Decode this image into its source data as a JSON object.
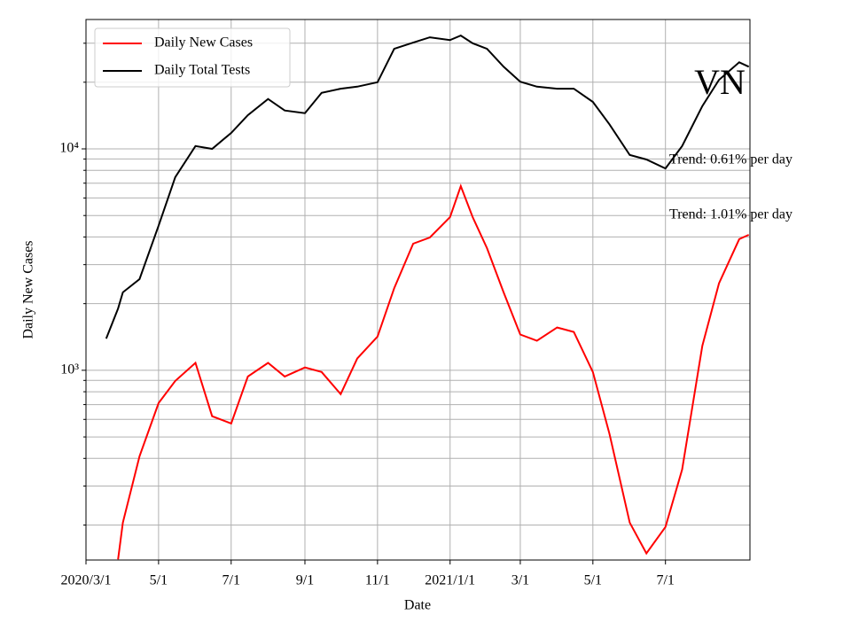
{
  "chart_data": {
    "type": "line",
    "title": "VN",
    "xlabel": "Date",
    "ylabel": "Daily New Cases",
    "annotations": [
      "Trend: 0.61% per day",
      "Trend: 1.01% per day"
    ],
    "x": [
      "2020-03-18",
      "2020-03-28",
      "2020-04-01",
      "2020-04-15",
      "2020-05-01",
      "2020-05-15",
      "2020-06-01",
      "2020-06-15",
      "2020-07-01",
      "2020-07-15",
      "2020-08-01",
      "2020-08-15",
      "2020-09-01",
      "2020-09-15",
      "2020-10-01",
      "2020-10-15",
      "2020-11-01",
      "2020-11-15",
      "2020-12-01",
      "2020-12-15",
      "2021-01-01",
      "2021-01-10",
      "2021-01-20",
      "2021-02-01",
      "2021-02-15",
      "2021-03-01",
      "2021-03-15",
      "2021-04-01",
      "2021-04-15",
      "2021-05-01",
      "2021-05-15",
      "2021-06-01",
      "2021-06-15",
      "2021-07-01",
      "2021-07-15",
      "2021-08-01",
      "2021-08-15",
      "2021-09-01",
      "2021-09-09"
    ],
    "series": [
      {
        "name": "Daily New Cases",
        "color": "#ff0000",
        "values": [
          null,
          140,
          205,
          409,
          711,
          895,
          1080,
          620,
          575,
          937,
          1080,
          937,
          1030,
          982,
          780,
          1130,
          1420,
          2350,
          3730,
          3980,
          4920,
          6790,
          4920,
          3560,
          2250,
          1450,
          1360,
          1560,
          1490,
          982,
          515,
          205,
          149,
          196,
          356,
          1290,
          2470,
          3910,
          4090
        ]
      },
      {
        "name": "Daily Total Tests",
        "color": "#000000",
        "values": [
          1390,
          1900,
          2250,
          2580,
          4500,
          7450,
          10300,
          10000,
          11800,
          14200,
          16800,
          14900,
          14500,
          17900,
          18700,
          19100,
          20000,
          28300,
          30200,
          31900,
          31000,
          32500,
          30000,
          28300,
          23500,
          20100,
          19100,
          18700,
          18700,
          16300,
          12900,
          9380,
          8950,
          8160,
          10300,
          15600,
          20500,
          24600,
          23500
        ]
      }
    ],
    "xlim": [
      "2020-03-01",
      "2021-09-10"
    ],
    "xticks": [
      {
        "value": "2020-03-01",
        "label": "2020/3/1"
      },
      {
        "value": "2020-05-01",
        "label": "5/1"
      },
      {
        "value": "2020-07-01",
        "label": "7/1"
      },
      {
        "value": "2020-09-01",
        "label": "9/1"
      },
      {
        "value": "2020-11-01",
        "label": "11/1"
      },
      {
        "value": "2021-01-01",
        "label": "2021/1/1"
      },
      {
        "value": "2021-03-01",
        "label": "3/1"
      },
      {
        "value": "2021-05-01",
        "label": "5/1"
      },
      {
        "value": "2021-07-01",
        "label": "7/1"
      }
    ],
    "ylim": [
      139,
      38400
    ],
    "yscale": "log",
    "yticks": [
      {
        "value": 1000,
        "label": "10³"
      },
      {
        "value": 10000,
        "label": "10⁴"
      }
    ],
    "yminorticks": [
      200,
      300,
      400,
      500,
      600,
      700,
      800,
      900,
      2000,
      3000,
      4000,
      5000,
      6000,
      7000,
      8000,
      9000,
      20000,
      30000
    ],
    "grid": true,
    "legend": "upper left"
  }
}
